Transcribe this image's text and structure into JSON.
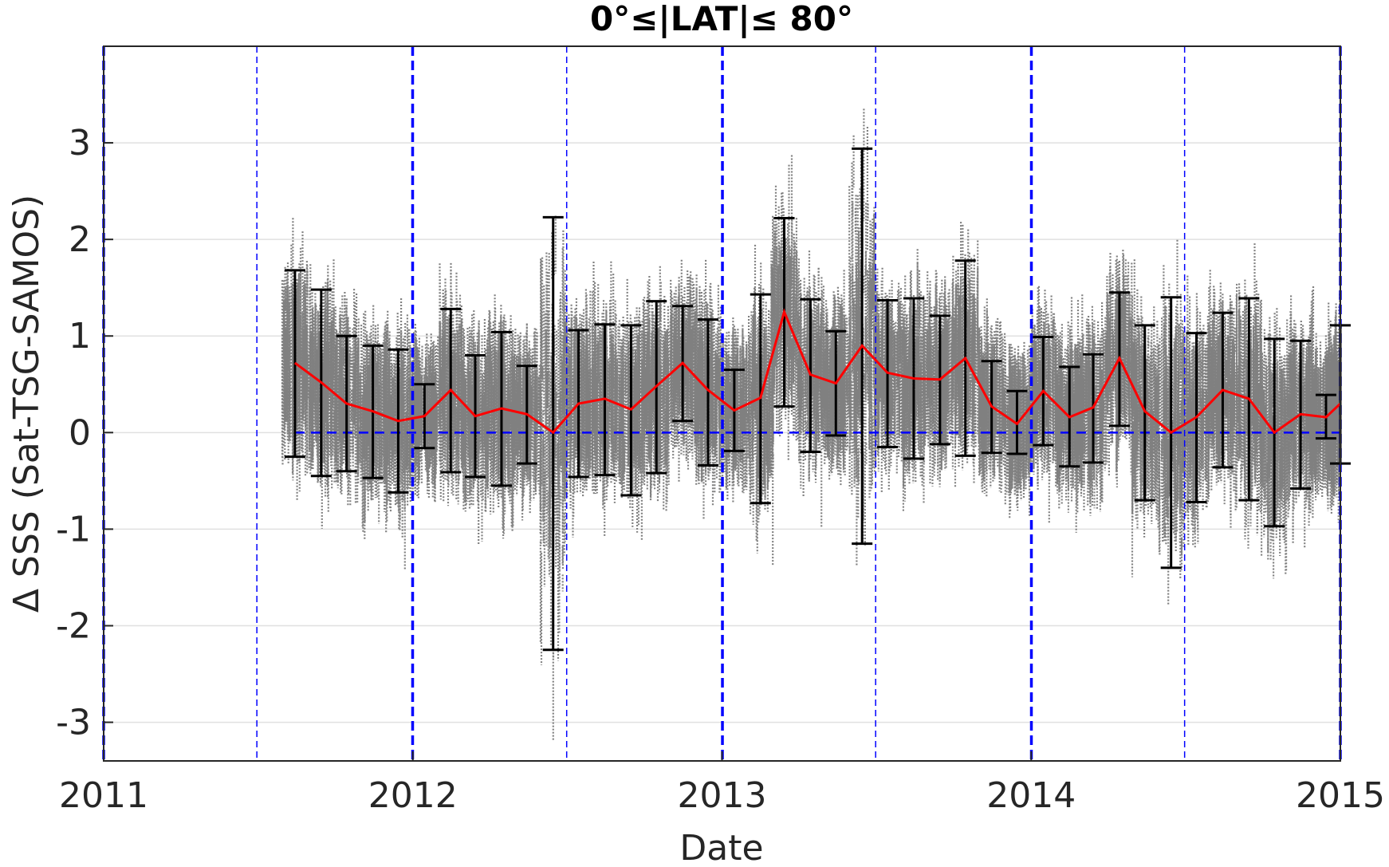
{
  "chart_data": {
    "type": "scatter",
    "title": "0°≤|LAT|≤ 80°",
    "xlabel": "Date",
    "ylabel": "Δ SSS (Sat-TSG-SAMOS)",
    "xlim": [
      "2011-01-01",
      "2015-01-01"
    ],
    "ylim": [
      -3.4,
      4.0
    ],
    "x_ticks": [
      "2011",
      "2012",
      "2013",
      "2014",
      "2015"
    ],
    "y_ticks": [
      -3,
      -2,
      -1,
      0,
      1,
      2,
      3
    ],
    "grid": true,
    "colors": {
      "scatter": "#808080",
      "mean_line": "#ff0000",
      "errorbar": "#000000",
      "reference": "#0000ff",
      "grid": "#e0e0e0"
    },
    "year_lines": [
      "2011-01-01",
      "2012-01-01",
      "2013-01-01",
      "2014-01-01",
      "2015-01-01"
    ],
    "half_year_lines": [
      "2011-07-01",
      "2012-07-01",
      "2013-07-01",
      "2014-07-01"
    ],
    "zero_line": 0,
    "monthly": [
      {
        "date": "2011-08-15",
        "mean": 0.72,
        "lower": -0.25,
        "upper": 1.68
      },
      {
        "date": "2011-09-15",
        "mean": 0.52,
        "lower": -0.45,
        "upper": 1.48
      },
      {
        "date": "2011-10-15",
        "mean": 0.3,
        "lower": -0.4,
        "upper": 1.0
      },
      {
        "date": "2011-11-15",
        "mean": 0.22,
        "lower": -0.47,
        "upper": 0.9
      },
      {
        "date": "2011-12-15",
        "mean": 0.12,
        "lower": -0.62,
        "upper": 0.86
      },
      {
        "date": "2012-01-15",
        "mean": 0.17,
        "lower": -0.16,
        "upper": 0.5
      },
      {
        "date": "2012-02-15",
        "mean": 0.44,
        "lower": -0.41,
        "upper": 1.28
      },
      {
        "date": "2012-03-15",
        "mean": 0.17,
        "lower": -0.46,
        "upper": 0.8
      },
      {
        "date": "2012-04-15",
        "mean": 0.25,
        "lower": -0.55,
        "upper": 1.04
      },
      {
        "date": "2012-05-15",
        "mean": 0.19,
        "lower": -0.32,
        "upper": 0.69
      },
      {
        "date": "2012-06-15",
        "mean": 0.0,
        "lower": -2.25,
        "upper": 2.23
      },
      {
        "date": "2012-07-15",
        "mean": 0.3,
        "lower": -0.46,
        "upper": 1.06
      },
      {
        "date": "2012-08-15",
        "mean": 0.35,
        "lower": -0.44,
        "upper": 1.12
      },
      {
        "date": "2012-09-15",
        "mean": 0.24,
        "lower": -0.65,
        "upper": 1.11
      },
      {
        "date": "2012-10-15",
        "mean": 0.48,
        "lower": -0.42,
        "upper": 1.36
      },
      {
        "date": "2012-11-15",
        "mean": 0.72,
        "lower": 0.12,
        "upper": 1.31
      },
      {
        "date": "2012-12-15",
        "mean": 0.44,
        "lower": -0.34,
        "upper": 1.17
      },
      {
        "date": "2013-01-15",
        "mean": 0.23,
        "lower": -0.19,
        "upper": 0.65
      },
      {
        "date": "2013-02-15",
        "mean": 0.36,
        "lower": -0.73,
        "upper": 1.43
      },
      {
        "date": "2013-03-15",
        "mean": 1.25,
        "lower": 0.27,
        "upper": 2.22
      },
      {
        "date": "2013-04-15",
        "mean": 0.6,
        "lower": -0.2,
        "upper": 1.38
      },
      {
        "date": "2013-05-15",
        "mean": 0.51,
        "lower": -0.03,
        "upper": 1.05
      },
      {
        "date": "2013-06-15",
        "mean": 0.9,
        "lower": -1.15,
        "upper": 2.94
      },
      {
        "date": "2013-07-15",
        "mean": 0.62,
        "lower": -0.15,
        "upper": 1.37
      },
      {
        "date": "2013-08-15",
        "mean": 0.56,
        "lower": -0.27,
        "upper": 1.39
      },
      {
        "date": "2013-09-15",
        "mean": 0.55,
        "lower": -0.12,
        "upper": 1.21
      },
      {
        "date": "2013-10-15",
        "mean": 0.77,
        "lower": -0.24,
        "upper": 1.78
      },
      {
        "date": "2013-11-15",
        "mean": 0.27,
        "lower": -0.21,
        "upper": 0.74
      },
      {
        "date": "2013-12-15",
        "mean": 0.09,
        "lower": -0.22,
        "upper": 0.43
      },
      {
        "date": "2014-01-15",
        "mean": 0.43,
        "lower": -0.13,
        "upper": 0.99
      },
      {
        "date": "2014-02-15",
        "mean": 0.16,
        "lower": -0.35,
        "upper": 0.68
      },
      {
        "date": "2014-03-15",
        "mean": 0.26,
        "lower": -0.31,
        "upper": 0.81
      },
      {
        "date": "2014-04-15",
        "mean": 0.77,
        "lower": 0.07,
        "upper": 1.45
      },
      {
        "date": "2014-05-15",
        "mean": 0.22,
        "lower": -0.7,
        "upper": 1.11
      },
      {
        "date": "2014-06-15",
        "mean": 0.0,
        "lower": -1.4,
        "upper": 1.4
      },
      {
        "date": "2014-07-15",
        "mean": 0.16,
        "lower": -0.72,
        "upper": 1.03
      },
      {
        "date": "2014-08-15",
        "mean": 0.44,
        "lower": -0.36,
        "upper": 1.24
      },
      {
        "date": "2014-09-15",
        "mean": 0.35,
        "lower": -0.7,
        "upper": 1.39
      },
      {
        "date": "2014-10-15",
        "mean": 0.0,
        "lower": -0.97,
        "upper": 0.97
      },
      {
        "date": "2014-11-15",
        "mean": 0.19,
        "lower": -0.58,
        "upper": 0.95
      },
      {
        "date": "2014-12-15",
        "mean": 0.16,
        "lower": -0.06,
        "upper": 0.39
      },
      {
        "date": "2015-01-01",
        "mean": 0.3,
        "lower": -0.32,
        "upper": 1.11
      }
    ]
  }
}
